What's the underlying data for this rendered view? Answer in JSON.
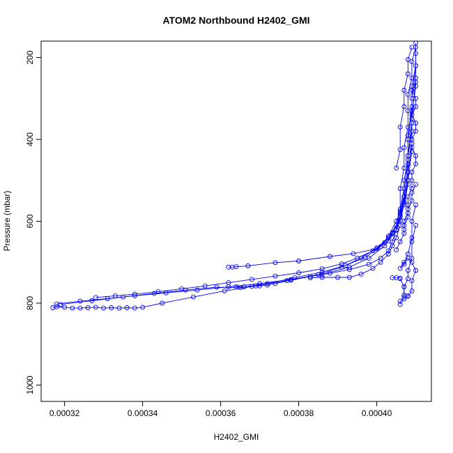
{
  "chart_data": {
    "type": "scatter",
    "title": "ATOM2 Northbound H2402_GMI",
    "xlabel": "H2402_GMI",
    "ylabel": "Pressure (mbar)",
    "xlim": [
      0.000314,
      0.000414
    ],
    "ylim": [
      1040,
      160
    ],
    "y_reversed": true,
    "x_ticks": [
      0.00032,
      0.00034,
      0.00036,
      0.00038,
      0.0004
    ],
    "x_tick_labels": [
      "0.00032",
      "0.00034",
      "0.00036",
      "0.00038",
      "0.00040"
    ],
    "y_ticks": [
      200,
      400,
      600,
      800,
      1000
    ],
    "y_tick_labels": [
      "200",
      "400",
      "600",
      "800",
      "1000"
    ],
    "grid": false,
    "legend": "none",
    "marker": "open-circle",
    "connect_points": true,
    "series_color": "#0000ff",
    "series": [
      {
        "x": [
          0.000317,
          0.000318,
          0.00032,
          0.000322,
          0.000324,
          0.000326,
          0.000328,
          0.00033,
          0.000332,
          0.000334,
          0.000336,
          0.000338,
          0.00034,
          0.000345,
          0.000353,
          0.000361,
          0.000369,
          0.000377,
          0.000385,
          0.000391,
          0.000396,
          0.0004,
          0.000403,
          0.000405,
          0.000406,
          0.000407,
          0.000408,
          0.000408,
          0.000409,
          0.000409,
          0.00041,
          0.00041
        ],
        "y": [
          811,
          809,
          810,
          812,
          812,
          811,
          810,
          812,
          811,
          812,
          811,
          812,
          810,
          800,
          785,
          770,
          758,
          745,
          730,
          712,
          690,
          665,
          640,
          610,
          570,
          520,
          460,
          400,
          330,
          270,
          220,
          165
        ]
      },
      {
        "x": [
          0.000318,
          0.000324,
          0.000331,
          0.000338,
          0.000346,
          0.000354,
          0.000362,
          0.00037,
          0.000378,
          0.000386,
          0.000393,
          0.000398,
          0.000402,
          0.000404,
          0.000406,
          0.000407,
          0.000408,
          0.000409,
          0.000409,
          0.00041,
          0.00041
        ],
        "y": [
          802,
          795,
          789,
          782,
          775,
          768,
          760,
          752,
          742,
          730,
          712,
          690,
          660,
          630,
          590,
          540,
          480,
          410,
          340,
          270,
          190
        ]
      },
      {
        "x": [
          0.000319,
          0.000327,
          0.000335,
          0.000343,
          0.000351,
          0.000359,
          0.000365,
          0.000372,
          0.000379,
          0.000386,
          0.000392,
          0.000397,
          0.000401,
          0.000403,
          0.000405,
          0.000407,
          0.000408,
          0.000409,
          0.000409,
          0.00041
        ],
        "y": [
          803,
          794,
          785,
          776,
          768,
          761,
          762,
          752,
          738,
          724,
          708,
          688,
          662,
          636,
          600,
          555,
          500,
          430,
          350,
          250
        ]
      },
      {
        "x": [
          0.000328,
          0.000333,
          0.000338,
          0.000344,
          0.00035,
          0.000356,
          0.000362,
          0.000368,
          0.000374,
          0.00038,
          0.000386,
          0.000391,
          0.000395,
          0.000399,
          0.000402,
          0.000404,
          0.000406,
          0.000407,
          0.000408,
          0.000408,
          0.000409
        ],
        "y": [
          786,
          782,
          778,
          772,
          765,
          758,
          750,
          742,
          734,
          726,
          716,
          704,
          690,
          672,
          652,
          628,
          598,
          560,
          510,
          440,
          360
        ]
      },
      {
        "x": [
          0.000362,
          0.000363,
          0.000364,
          0.000367,
          0.000374,
          0.00038,
          0.000388,
          0.000394,
          0.0004,
          0.000403,
          0.000405,
          0.000406,
          0.000407,
          0.000408,
          0.000408,
          0.000409,
          0.000409,
          0.00041
        ],
        "y": [
          712,
          712,
          711,
          709,
          701,
          697,
          686,
          679,
          667,
          648,
          622,
          590,
          550,
          500,
          440,
          380,
          300,
          220
        ]
      },
      {
        "x": [
          0.000364,
          0.000366,
          0.000368,
          0.00037,
          0.000372,
          0.000374,
          0.000378,
          0.000383,
          0.000388,
          0.000393,
          0.000398,
          0.000401,
          0.000403,
          0.000404,
          0.000405,
          0.000406,
          0.000407,
          0.000408,
          0.000409,
          0.000409
        ],
        "y": [
          760,
          760,
          759,
          758,
          756,
          752,
          744,
          735,
          727,
          718,
          705,
          690,
          672,
          650,
          620,
          585,
          540,
          480,
          410,
          330
        ]
      },
      {
        "x": [
          0.000383,
          0.000386,
          0.00039,
          0.000393,
          0.000396,
          0.000399,
          0.000401,
          0.000403,
          0.000404,
          0.000405,
          0.000406,
          0.000406,
          0.000407,
          0.000407,
          0.000408,
          0.000408,
          0.000409
        ],
        "y": [
          738,
          737,
          737,
          737,
          729,
          715,
          700,
          680,
          660,
          640,
          610,
          575,
          540,
          500,
          450,
          390,
          320
        ]
      },
      {
        "x": [
          0.000404,
          0.000405,
          0.000406,
          0.000406,
          0.000407,
          0.000407,
          0.000408,
          0.000408,
          0.000409,
          0.000409,
          0.00041,
          0.000409,
          0.000408,
          0.000407,
          0.000406,
          0.000407,
          0.000408,
          0.000409,
          0.000409,
          0.00041
        ],
        "y": [
          738,
          738,
          739,
          740,
          760,
          785,
          782,
          783,
          770,
          745,
          720,
          700,
          690,
          700,
          715,
          705,
          680,
          640,
          600,
          560
        ]
      },
      {
        "x": [
          0.000406,
          0.000406,
          0.000407,
          0.000407,
          0.000407,
          0.000408,
          0.000408,
          0.000409,
          0.000409,
          0.00041
        ],
        "y": [
          803,
          795,
          790,
          780,
          760,
          740,
          720,
          690,
          650,
          610
        ]
      },
      {
        "x": [
          0.000407,
          0.000407,
          0.000408,
          0.000408,
          0.000408,
          0.000409,
          0.000409,
          0.000409,
          0.00041,
          0.00041,
          0.000409,
          0.000409,
          0.00041,
          0.00041,
          0.000409,
          0.00041,
          0.00041,
          0.000409,
          0.00041
        ],
        "y": [
          620,
          600,
          580,
          560,
          540,
          520,
          500,
          480,
          460,
          440,
          420,
          400,
          380,
          360,
          340,
          320,
          300,
          280,
          260
        ]
      },
      {
        "x": [
          0.000406,
          0.000406,
          0.000407,
          0.000407,
          0.000408,
          0.000408,
          0.000408,
          0.000409,
          0.000409,
          0.00041
        ],
        "y": [
          580,
          520,
          470,
          420,
          370,
          330,
          290,
          250,
          210,
          175
        ]
      },
      {
        "x": [
          0.000405,
          0.000406,
          0.000406,
          0.000407,
          0.000407,
          0.000408,
          0.000408,
          0.000409
        ],
        "y": [
          470,
          425,
          370,
          320,
          280,
          240,
          205,
          175
        ]
      },
      {
        "x": [
          0.000405,
          0.000406,
          0.000407,
          0.000407,
          0.000408,
          0.000408,
          0.000409,
          0.000409,
          0.00041
        ],
        "y": [
          670,
          650,
          630,
          610,
          590,
          570,
          550,
          530,
          510
        ]
      }
    ]
  }
}
